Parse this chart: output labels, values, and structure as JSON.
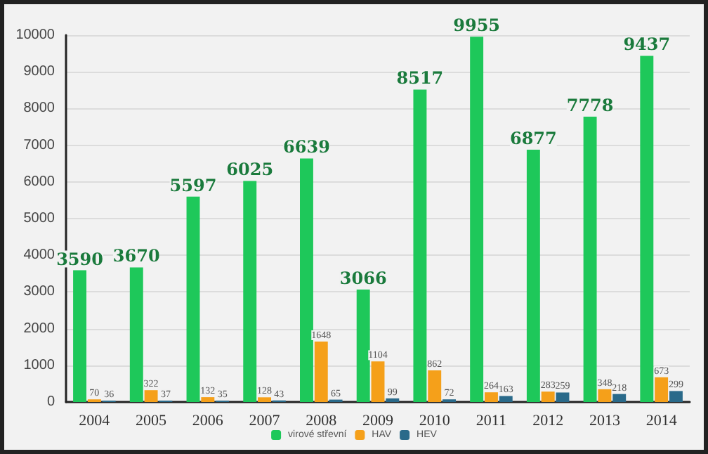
{
  "chart_data": {
    "type": "bar",
    "categories": [
      "2004",
      "2005",
      "2006",
      "2007",
      "2008",
      "2009",
      "2010",
      "2011",
      "2012",
      "2013",
      "2014"
    ],
    "series": [
      {
        "name": "virové střevní",
        "color": "#1ec85a",
        "values": [
          3590,
          3670,
          5597,
          6025,
          6639,
          3066,
          8517,
          9955,
          6877,
          7778,
          9437
        ]
      },
      {
        "name": "HAV",
        "color": "#f5a01a",
        "values": [
          70,
          322,
          132,
          128,
          1648,
          1104,
          862,
          264,
          283,
          348,
          673
        ]
      },
      {
        "name": "HEV",
        "color": "#2a6a8a",
        "values": [
          36,
          37,
          35,
          43,
          65,
          99,
          72,
          163,
          259,
          218,
          299
        ]
      }
    ],
    "ylim": [
      0,
      10000
    ],
    "yticks": [
      0,
      1000,
      2000,
      3000,
      4000,
      5000,
      6000,
      7000,
      8000,
      9000,
      10000
    ],
    "grid": "y",
    "legend": "bottom",
    "data_labels": true
  }
}
